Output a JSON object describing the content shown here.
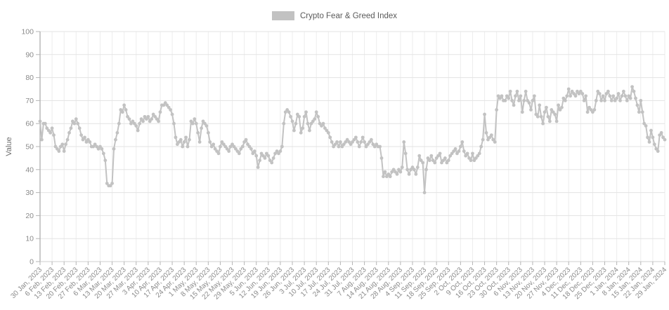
{
  "legend": {
    "label": "Crypto Fear & Greed Index",
    "swatch_color": "#c2c2c2"
  },
  "colors": {
    "line": "#c2c2c2",
    "marker": "#c2c2c2",
    "h_grid": "#e3e3e3",
    "v_grid": "#ededed",
    "y_axis_line": "#a8a8a8",
    "x_axis_line": "#cfcfcf",
    "tick": "#b5b5b5",
    "text": "#8a8a8a"
  },
  "chart_data": {
    "type": "line",
    "title": "Crypto Fear & Greed Index",
    "xlabel": "",
    "ylabel": "Value",
    "ylim": [
      0,
      100
    ],
    "y_ticks": [
      0,
      10,
      20,
      30,
      40,
      50,
      60,
      70,
      80,
      90,
      100
    ],
    "grid": "on",
    "legend_position": "top-center",
    "marker": "circle",
    "x_interval": "daily",
    "x_start": "30 Jan, 2023",
    "x_end": "29 Jan, 2024",
    "x_tick_labels": [
      "30 Jan, 2023",
      "6 Feb, 2023",
      "13 Feb, 2023",
      "20 Feb, 2023",
      "27 Feb, 2023",
      "6 Mar, 2023",
      "13 Mar, 2023",
      "20 Mar, 2023",
      "27 Mar, 2023",
      "3 Apr, 2023",
      "10 Apr, 2023",
      "17 Apr, 2023",
      "24 Apr, 2023",
      "1 May, 2023",
      "8 May, 2023",
      "15 May, 2023",
      "22 May, 2023",
      "29 May, 2023",
      "5 Jun, 2023",
      "12 Jun, 2023",
      "19 Jun, 2023",
      "26 Jun, 2023",
      "3 Jul, 2023",
      "10 Jul, 2023",
      "17 Jul, 2023",
      "24 Jul, 2023",
      "31 Jul, 2023",
      "7 Aug, 2023",
      "14 Aug, 2023",
      "21 Aug, 2023",
      "28 Aug, 2023",
      "4 Sep, 2023",
      "11 Sep, 2023",
      "18 Sep, 2023",
      "25 Sep, 2023",
      "2 Oct, 2023",
      "9 Oct, 2023",
      "16 Oct, 2023",
      "23 Oct, 2023",
      "30 Oct, 2023",
      "6 Nov, 2023",
      "13 Nov, 2023",
      "20 Nov, 2023",
      "27 Nov, 2023",
      "4 Dec, 2023",
      "11 Dec, 2023",
      "18 Dec, 2023",
      "25 Dec, 2023",
      "1 Jan, 2024",
      "8 Jan, 2024",
      "15 Jan, 2024",
      "22 Jan, 2024",
      "29 Jan, 2024"
    ],
    "days_per_x_tick": 7,
    "series": [
      {
        "name": "Crypto Fear & Greed Index",
        "color": "#c2c2c2",
        "values": [
          61,
          53,
          60,
          60,
          58,
          57,
          56,
          58,
          55,
          50,
          49,
          48,
          50,
          51,
          48,
          51,
          53,
          56,
          58,
          61,
          60,
          62,
          60,
          58,
          55,
          53,
          54,
          52,
          53,
          52,
          50,
          50,
          51,
          50,
          49,
          50,
          49,
          47,
          44,
          34,
          33,
          33,
          34,
          49,
          53,
          56,
          60,
          66,
          65,
          68,
          66,
          63,
          62,
          60,
          61,
          60,
          59,
          57,
          60,
          62,
          61,
          63,
          62,
          63,
          61,
          62,
          64,
          63,
          62,
          61,
          65,
          68,
          68,
          69,
          68,
          67,
          66,
          64,
          60,
          54,
          51,
          52,
          53,
          50,
          52,
          54,
          50,
          53,
          61,
          60,
          62,
          60,
          56,
          52,
          58,
          61,
          60,
          59,
          56,
          52,
          50,
          51,
          49,
          48,
          47,
          50,
          52,
          51,
          50,
          49,
          48,
          50,
          51,
          50,
          49,
          48,
          47,
          49,
          50,
          52,
          53,
          51,
          50,
          49,
          47,
          48,
          46,
          41,
          44,
          47,
          46,
          45,
          47,
          46,
          44,
          43,
          45,
          47,
          48,
          47,
          48,
          50,
          60,
          65,
          66,
          65,
          63,
          61,
          57,
          60,
          64,
          63,
          56,
          58,
          63,
          65,
          60,
          57,
          60,
          61,
          62,
          65,
          63,
          60,
          59,
          60,
          58,
          57,
          56,
          54,
          52,
          50,
          51,
          52,
          50,
          52,
          50,
          51,
          52,
          53,
          52,
          51,
          52,
          53,
          54,
          52,
          50,
          52,
          54,
          52,
          50,
          51,
          52,
          53,
          51,
          50,
          51,
          50,
          50,
          45,
          37,
          39,
          37,
          38,
          37,
          39,
          40,
          39,
          38,
          40,
          39,
          41,
          52,
          47,
          40,
          38,
          40,
          41,
          40,
          38,
          41,
          46,
          44,
          43,
          30,
          40,
          45,
          44,
          46,
          44,
          43,
          45,
          46,
          47,
          43,
          44,
          45,
          43,
          44,
          46,
          47,
          48,
          49,
          47,
          48,
          50,
          52,
          48,
          46,
          47,
          45,
          44,
          47,
          44,
          45,
          46,
          47,
          50,
          53,
          64,
          56,
          53,
          54,
          55,
          53,
          52,
          66,
          72,
          71,
          72,
          70,
          70,
          72,
          71,
          74,
          70,
          68,
          72,
          74,
          70,
          72,
          65,
          70,
          74,
          70,
          69,
          66,
          70,
          72,
          64,
          63,
          68,
          63,
          60,
          65,
          67,
          63,
          61,
          66,
          65,
          64,
          61,
          68,
          66,
          67,
          71,
          70,
          72,
          75,
          72,
          74,
          73,
          72,
          74,
          73,
          74,
          73,
          70,
          72,
          65,
          67,
          66,
          65,
          66,
          70,
          74,
          73,
          70,
          72,
          70,
          73,
          74,
          72,
          70,
          72,
          70,
          71,
          73,
          70,
          72,
          74,
          72,
          70,
          72,
          71,
          76,
          74,
          71,
          68,
          65,
          70,
          65,
          60,
          59,
          54,
          52,
          57,
          54,
          51,
          49,
          48,
          55,
          56,
          54,
          53
        ]
      }
    ]
  }
}
